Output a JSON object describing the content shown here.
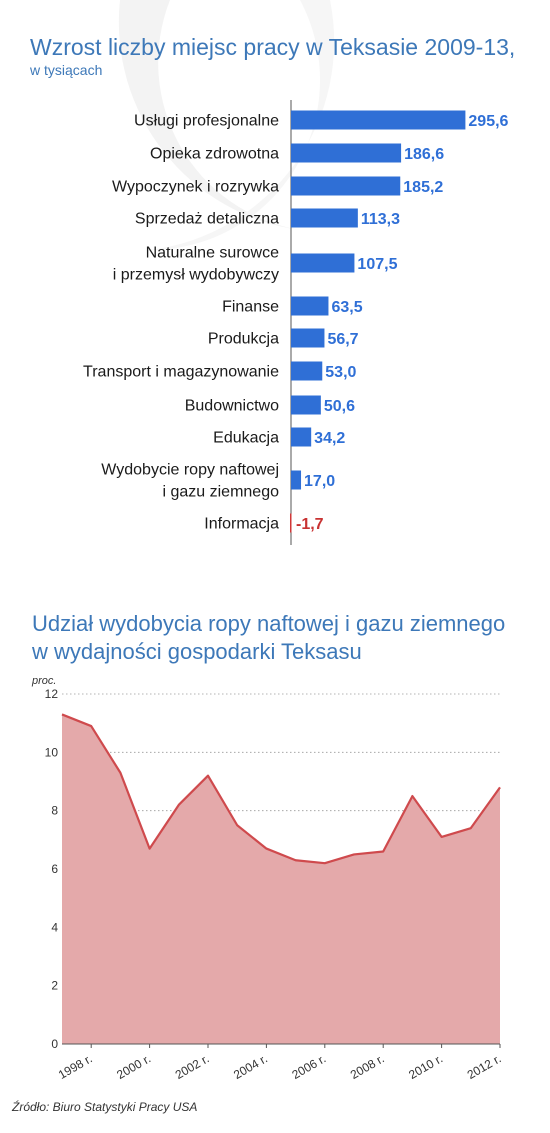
{
  "bar_chart": {
    "title": "Wzrost liczby miejsc pracy w Teksasie 2009-13,",
    "subtitle": "w tysiącach"
  },
  "line_chart": {
    "title_line1": "Udział wydobycia ropy naftowej i gazu ziemnego",
    "title_line2": "w wydajności gospodarki Teksasu",
    "ylabel": "proc."
  },
  "source": "Źródło: Biuro Statystyki Pracy USA",
  "colors": {
    "title": "#3d78b8",
    "bar_positive": "#2f6fd6",
    "bar_negative": "#d03838",
    "value_positive": "#2f6fd6",
    "value_negative": "#c83232",
    "area_fill": "#e4a9aa",
    "area_line": "#cf4a4d",
    "watermark": "#f2f2f2"
  },
  "chart_data": [
    {
      "type": "bar",
      "orientation": "horizontal",
      "title": "Wzrost liczby miejsc pracy w Teksasie 2009-13,",
      "subtitle": "w tysiącach",
      "categories": [
        [
          "Usługi profesjonalne"
        ],
        [
          "Opieka zdrowotna"
        ],
        [
          "Wypoczynek i rozrywka"
        ],
        [
          "Sprzedaż detaliczna"
        ],
        [
          "Naturalne surowce",
          "i przemysł wydobywczy"
        ],
        [
          "Finanse"
        ],
        [
          "Produkcja"
        ],
        [
          "Transport i magazynowanie"
        ],
        [
          "Budownictwo"
        ],
        [
          "Edukacja"
        ],
        [
          "Wydobycie ropy naftowej",
          "i gazu ziemnego"
        ],
        [
          "Informacja"
        ]
      ],
      "values": [
        295.6,
        186.6,
        185.2,
        113.3,
        107.5,
        63.5,
        56.7,
        53.0,
        50.6,
        34.2,
        17.0,
        -1.7
      ],
      "value_labels": [
        "295,6",
        "186,6",
        "185,2",
        "113,3",
        "107,5",
        "63,5",
        "56,7",
        "53,0",
        "50,6",
        "34,2",
        "17,0",
        "-1,7"
      ],
      "grid": false
    },
    {
      "type": "area",
      "title": "Udział wydobycia ropy naftowej i gazu ziemnego w wydajności gospodarki Teksasu",
      "ylabel": "proc.",
      "x": [
        1997,
        1998,
        1999,
        2000,
        2001,
        2002,
        2003,
        2004,
        2005,
        2006,
        2007,
        2008,
        2009,
        2010,
        2011,
        2012
      ],
      "values": [
        11.3,
        10.9,
        9.3,
        6.7,
        8.2,
        9.2,
        7.5,
        6.7,
        6.3,
        6.2,
        6.5,
        6.6,
        8.5,
        7.1,
        7.4,
        8.8
      ],
      "ylim": [
        0,
        12
      ],
      "yticks": [
        0,
        2,
        4,
        6,
        8,
        10,
        12
      ],
      "ytick_labels": [
        "0",
        "2",
        "4",
        "6",
        "8",
        "10",
        "12"
      ],
      "xtick_years": [
        1998,
        2000,
        2002,
        2004,
        2006,
        2008,
        2010,
        2012
      ],
      "xtick_labels": [
        "1998 r.",
        "2000 r.",
        "2002 r.",
        "2004 r.",
        "2006 r.",
        "2008 r.",
        "2010 r.",
        "2012 r."
      ],
      "grid": "horizontal dashed"
    }
  ]
}
